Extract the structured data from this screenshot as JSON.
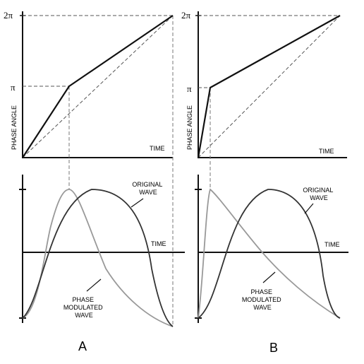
{
  "panels": [
    {
      "id": "A",
      "caption": "A",
      "y_axis_label": "PHASE ANGLE",
      "x_axis_label_top": "TIME",
      "x_axis_label_bottom": "TIME",
      "tick_2pi": "2π",
      "tick_pi": "π",
      "label_original": [
        "ORIGINAL",
        "WAVE"
      ],
      "label_modulated": [
        "PHASE",
        "MODULATED",
        "WAVE"
      ]
    },
    {
      "id": "B",
      "caption": "B",
      "y_axis_label": "PHASE ANGLE",
      "x_axis_label_top": "TIME",
      "x_axis_label_bottom": "TIME",
      "tick_2pi": "2π",
      "tick_pi": "π",
      "label_original": [
        "ORIGINAL",
        "WAVE"
      ],
      "label_modulated": [
        "PHASE",
        "MODULATED",
        "WAVE"
      ]
    }
  ],
  "colors": {
    "axis": "#111111",
    "phase_line": "#111111",
    "dashed": "#555555",
    "original_wave": "#333333",
    "modulated_wave": "#999999"
  }
}
